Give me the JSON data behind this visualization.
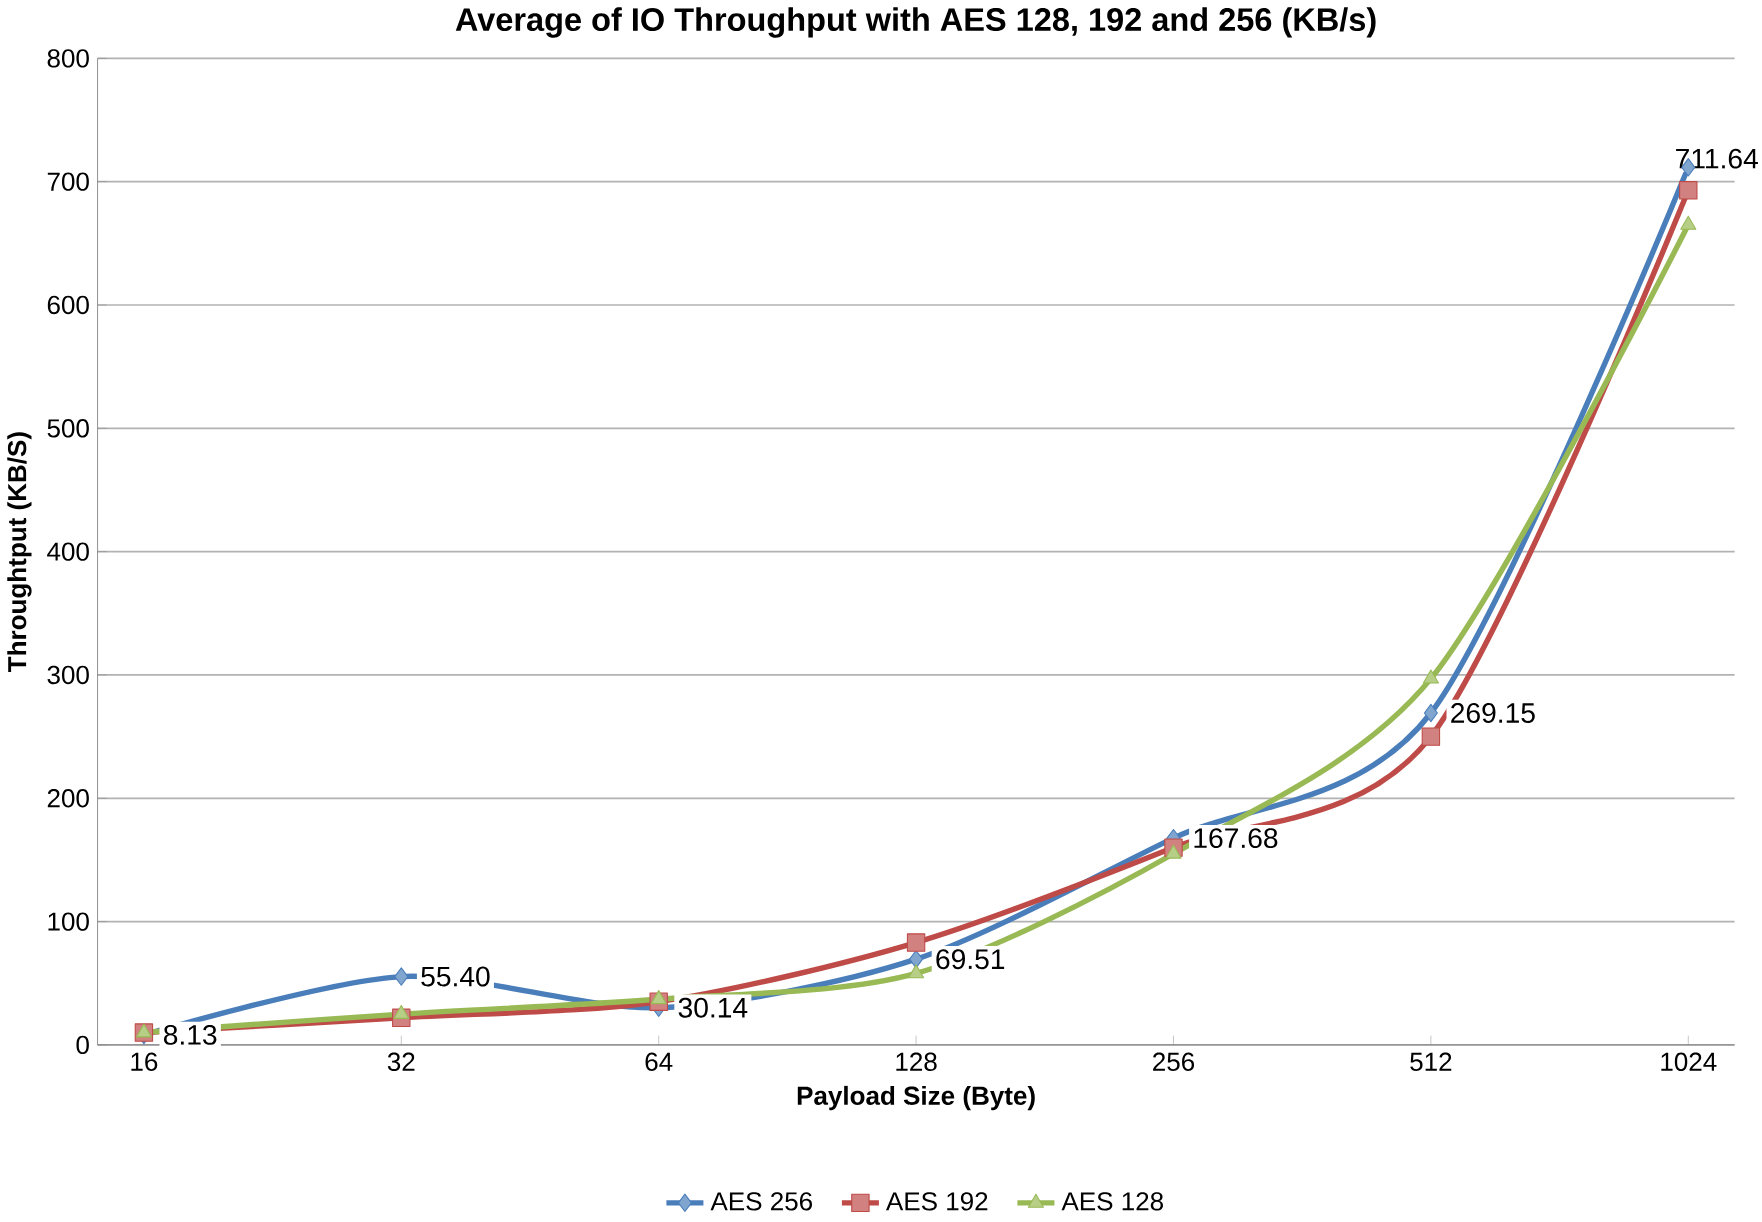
{
  "chart_data": {
    "type": "line",
    "title": "Average of  IO Throughput with AES 128, 192 and 256 (KB/s)",
    "xlabel": "Payload Size (Byte)",
    "ylabel": "Throughtput (KB/S)",
    "categories": [
      "16",
      "32",
      "64",
      "128",
      "256",
      "512",
      "1024"
    ],
    "series": [
      {
        "name": "AES 256",
        "color": "#4a7ebb",
        "marker": "diamond",
        "values": [
          8.13,
          55.4,
          30.14,
          69.51,
          167.68,
          269.15,
          711.64
        ],
        "value_labels": [
          "8.13",
          "55.40",
          "30.14",
          "69.51",
          "167.68",
          "269.15",
          "711.64"
        ]
      },
      {
        "name": "AES 192",
        "color": "#be4b48",
        "marker": "square",
        "values": [
          10,
          22,
          35,
          83,
          160,
          250,
          693
        ]
      },
      {
        "name": "AES 128",
        "color": "#98b954",
        "marker": "triangle",
        "values": [
          10,
          25,
          37,
          58,
          155,
          297,
          665
        ]
      }
    ],
    "ylim": [
      0,
      800
    ],
    "yticks": [
      0,
      100,
      200,
      300,
      400,
      500,
      600,
      700,
      800
    ],
    "grid": "y",
    "legend": "bottom"
  }
}
